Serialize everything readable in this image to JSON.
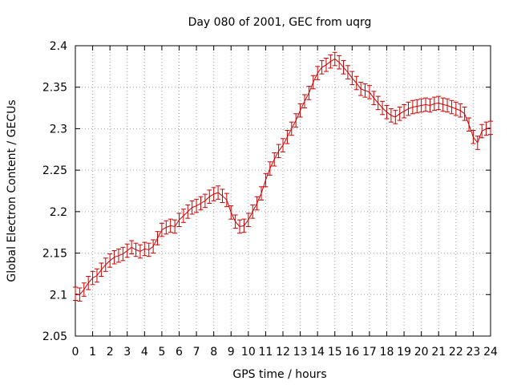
{
  "chart_data": {
    "type": "line",
    "title": "Day 080 of 2001, GEC from uqrg",
    "xlabel": "GPS time / hours",
    "ylabel": "Global Electron Content / GECUs",
    "xlim": [
      0,
      24
    ],
    "ylim": [
      2.05,
      2.4
    ],
    "x_ticks": [
      0,
      1,
      2,
      3,
      4,
      5,
      6,
      7,
      8,
      9,
      10,
      11,
      12,
      13,
      14,
      15,
      16,
      17,
      18,
      19,
      20,
      21,
      22,
      23,
      24
    ],
    "x_tick_labels": [
      "0",
      "1",
      "2",
      "3",
      "4",
      "5",
      "6",
      "7",
      "8",
      "9",
      "10",
      "11",
      "12",
      "13",
      "14",
      "15",
      "16",
      "17",
      "18",
      "19",
      "20",
      "21",
      "22",
      "23",
      "24"
    ],
    "y_ticks": [
      2.05,
      2.1,
      2.15,
      2.2,
      2.25,
      2.3,
      2.35,
      2.4
    ],
    "y_tick_labels": [
      "2.05",
      "2.1",
      "2.15",
      "2.2",
      "2.25",
      "2.3",
      "2.35",
      "2.4"
    ],
    "grid": true,
    "series_color": "#cc0000",
    "error": 0.008,
    "x": [
      0,
      0.25,
      0.5,
      0.75,
      1,
      1.25,
      1.5,
      1.75,
      2,
      2.25,
      2.5,
      2.75,
      3,
      3.25,
      3.5,
      3.75,
      4,
      4.25,
      4.5,
      4.75,
      5,
      5.25,
      5.5,
      5.75,
      6,
      6.25,
      6.5,
      6.75,
      7,
      7.25,
      7.5,
      7.75,
      8,
      8.25,
      8.5,
      8.75,
      9,
      9.25,
      9.5,
      9.75,
      10,
      10.25,
      10.5,
      10.75,
      11,
      11.25,
      11.5,
      11.75,
      12,
      12.25,
      12.5,
      12.75,
      13,
      13.25,
      13.5,
      13.75,
      14,
      14.25,
      14.5,
      14.75,
      15,
      15.25,
      15.5,
      15.75,
      16,
      16.25,
      16.5,
      16.75,
      17,
      17.25,
      17.5,
      17.75,
      18,
      18.25,
      18.5,
      18.75,
      19,
      19.25,
      19.5,
      19.75,
      20,
      20.25,
      20.5,
      20.75,
      21,
      21.25,
      21.5,
      21.75,
      22,
      22.25,
      22.5,
      22.75,
      23,
      23.25,
      23.5,
      23.75,
      24
    ],
    "y": [
      2.101,
      2.1,
      2.106,
      2.114,
      2.12,
      2.123,
      2.13,
      2.136,
      2.141,
      2.145,
      2.147,
      2.149,
      2.153,
      2.157,
      2.154,
      2.152,
      2.155,
      2.154,
      2.158,
      2.168,
      2.178,
      2.181,
      2.183,
      2.182,
      2.19,
      2.195,
      2.2,
      2.205,
      2.207,
      2.21,
      2.213,
      2.218,
      2.221,
      2.223,
      2.219,
      2.214,
      2.199,
      2.188,
      2.182,
      2.183,
      2.19,
      2.2,
      2.21,
      2.222,
      2.238,
      2.252,
      2.263,
      2.273,
      2.28,
      2.29,
      2.3,
      2.31,
      2.322,
      2.333,
      2.343,
      2.356,
      2.367,
      2.374,
      2.377,
      2.381,
      2.384,
      2.38,
      2.374,
      2.368,
      2.361,
      2.355,
      2.348,
      2.346,
      2.344,
      2.337,
      2.331,
      2.325,
      2.32,
      2.316,
      2.314,
      2.318,
      2.321,
      2.324,
      2.326,
      2.327,
      2.328,
      2.329,
      2.328,
      2.33,
      2.331,
      2.329,
      2.328,
      2.326,
      2.324,
      2.322,
      2.318,
      2.305,
      2.29,
      2.283,
      2.297,
      2.3,
      2.301
    ]
  }
}
